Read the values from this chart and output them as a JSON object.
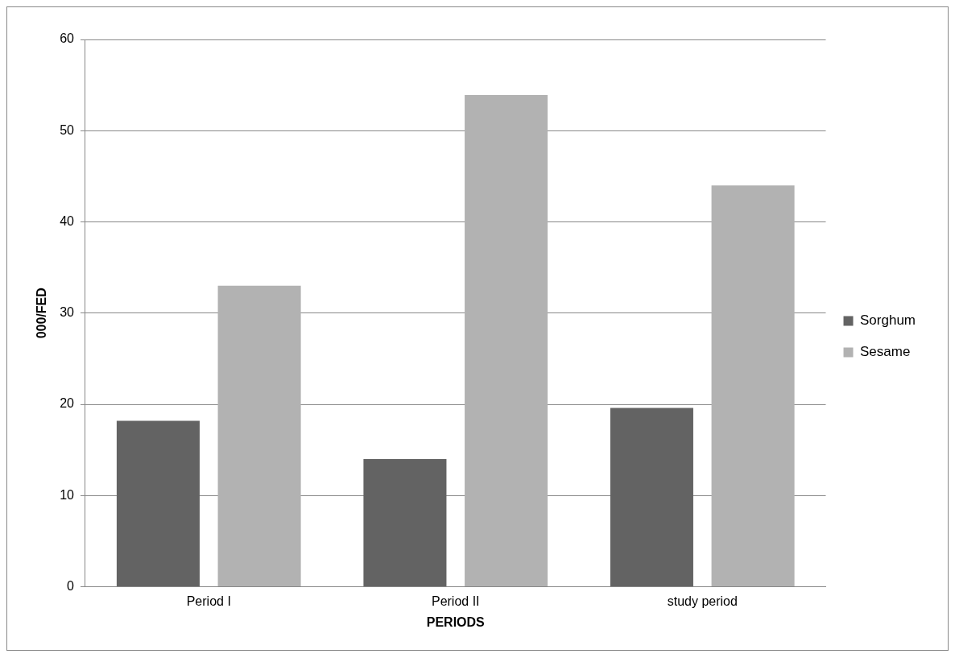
{
  "chart_data": {
    "type": "bar",
    "xlabel": "PERIODS",
    "ylabel": "000/FED",
    "categories": [
      "Period I",
      "Period II",
      "study period"
    ],
    "series": [
      {
        "name": "Sorghum",
        "color": "#636363",
        "values": [
          18.2,
          14,
          19.6
        ]
      },
      {
        "name": "Sesame",
        "color": "#b2b2b2",
        "values": [
          33,
          53.9,
          44
        ]
      }
    ],
    "ylim": [
      0,
      60
    ],
    "yticks": [
      0,
      10,
      20,
      30,
      40,
      50,
      60
    ],
    "grid": "y",
    "legend": "right"
  }
}
